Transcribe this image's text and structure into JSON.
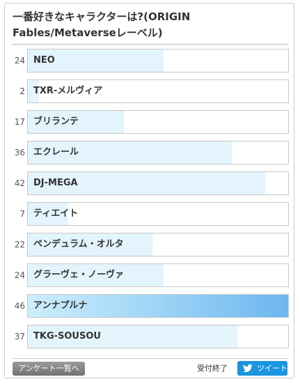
{
  "poll": {
    "title": "一番好きなキャラクターは?(ORIGIN Fables/Metaverseレーベル)",
    "max_votes": 46,
    "options": [
      {
        "label": "NEO",
        "votes": 24
      },
      {
        "label": "TXR-メルヴィア",
        "votes": 2
      },
      {
        "label": "ブリランテ",
        "votes": 17
      },
      {
        "label": "エクレール",
        "votes": 36
      },
      {
        "label": "DJ-MEGA",
        "votes": 42
      },
      {
        "label": "ティエイト",
        "votes": 7
      },
      {
        "label": "ペンデュラム・オルタ",
        "votes": 22
      },
      {
        "label": "グラーヴェ・ノーヴァ",
        "votes": 24
      },
      {
        "label": "アンナプルナ",
        "votes": 46
      },
      {
        "label": "TKG-SOUSOU",
        "votes": 37
      }
    ],
    "colors": {
      "bar": "#e3f4fd",
      "leader_start": "#cdeefc",
      "leader_end": "#6db6ef",
      "tweet": "#1b95e0"
    }
  },
  "footer": {
    "list_button": "アンケート一覧へ",
    "status": "受付終了",
    "tweet_button": "ツイート",
    "tweet_icon": "twitter-bird-icon"
  }
}
